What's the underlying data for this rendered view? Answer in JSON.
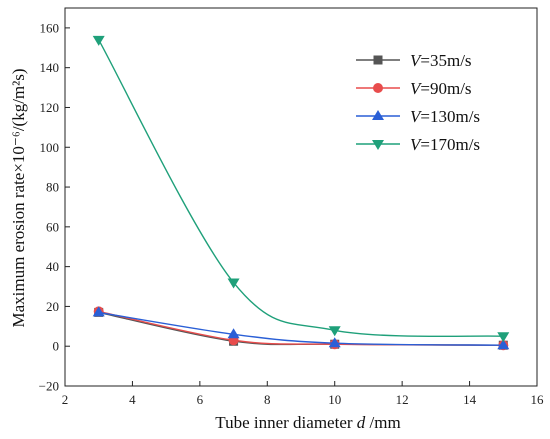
{
  "chart_data": {
    "type": "line",
    "x_label": {
      "prefix": "Tube inner diameter ",
      "var": "d",
      "suffix": " /mm"
    },
    "y_label": "Maximum erosion rate×10⁻⁶/(kg/m²s)",
    "xlim": [
      2,
      16
    ],
    "ylim": [
      -20,
      170
    ],
    "x_ticks": [
      2,
      4,
      6,
      8,
      10,
      12,
      14,
      16
    ],
    "y_ticks": [
      -20,
      0,
      20,
      40,
      60,
      80,
      100,
      120,
      140,
      160
    ],
    "grid": false,
    "smooth_lines": true,
    "legend_position": "top-right",
    "series": [
      {
        "name": "V=35m/s",
        "var": "V",
        "label_rest": "=35m/s",
        "color": "#555555",
        "marker": "square",
        "x": [
          3,
          7,
          10,
          15
        ],
        "y": [
          17,
          2.5,
          1,
          0.5
        ]
      },
      {
        "name": "V=90m/s",
        "var": "V",
        "label_rest": "=90m/s",
        "color": "#e84c4c",
        "marker": "circle",
        "x": [
          3,
          7,
          10,
          15
        ],
        "y": [
          17.5,
          3,
          1,
          0.5
        ]
      },
      {
        "name": "V=130m/s",
        "var": "V",
        "label_rest": "=130m/s",
        "color": "#2a5fd6",
        "marker": "triangle-up",
        "x": [
          3,
          7,
          10,
          15
        ],
        "y": [
          17,
          6,
          1.5,
          0.5
        ]
      },
      {
        "name": "V=170m/s",
        "var": "V",
        "label_rest": "=170m/s",
        "color": "#1fa07a",
        "marker": "triangle-down",
        "x": [
          3,
          7,
          10,
          15
        ],
        "y": [
          154,
          32,
          8,
          5
        ]
      }
    ]
  }
}
